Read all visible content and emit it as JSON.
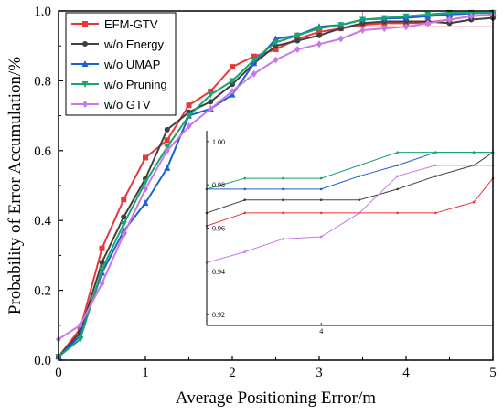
{
  "chart_data": [
    {
      "type": "line",
      "xlabel": "Average Positioning Error/m",
      "ylabel": "Probability of Error Accumulation/%",
      "xlim": [
        0,
        5
      ],
      "ylim": [
        0,
        1.0
      ],
      "xticks": [
        "0",
        "1",
        "2",
        "3",
        "4",
        "5"
      ],
      "yticks": [
        "0.0",
        "0.2",
        "0.4",
        "0.6",
        "0.8",
        "1.0"
      ],
      "grid": false,
      "legend_position": "top-left",
      "highlight_box": {
        "x": [
          3.5,
          5.0
        ],
        "y": [
          0.955,
          1.0
        ],
        "color": "#f08080"
      },
      "series": [
        {
          "name": "EFM-GTV",
          "color": "#e8383b",
          "marker": "square",
          "x": [
            0,
            0.25,
            0.5,
            0.75,
            1.0,
            1.25,
            1.5,
            1.75,
            2.0,
            2.25,
            2.5,
            2.75,
            3.0,
            3.25,
            3.5,
            3.75,
            4.0,
            4.25,
            4.5,
            4.75,
            5.0
          ],
          "y": [
            0.01,
            0.09,
            0.32,
            0.46,
            0.58,
            0.63,
            0.73,
            0.77,
            0.84,
            0.87,
            0.89,
            0.92,
            0.94,
            0.95,
            0.96,
            0.965,
            0.965,
            0.967,
            0.975,
            0.985,
            0.99
          ]
        },
        {
          "name": "w/o Energy",
          "color": "#404040",
          "marker": "circle",
          "x": [
            0,
            0.25,
            0.5,
            0.75,
            1.0,
            1.25,
            1.5,
            1.75,
            2.0,
            2.25,
            2.5,
            2.75,
            3.0,
            3.25,
            3.5,
            3.75,
            4.0,
            4.25,
            4.5,
            4.75,
            5.0
          ],
          "y": [
            0.01,
            0.08,
            0.28,
            0.41,
            0.52,
            0.66,
            0.71,
            0.74,
            0.79,
            0.85,
            0.9,
            0.915,
            0.93,
            0.95,
            0.965,
            0.97,
            0.97,
            0.97,
            0.965,
            0.975,
            0.98
          ]
        },
        {
          "name": "w/o UMAP",
          "color": "#1f5fd0",
          "marker": "triangle-up",
          "x": [
            0,
            0.25,
            0.5,
            0.75,
            1.0,
            1.25,
            1.5,
            1.75,
            2.0,
            2.25,
            2.5,
            2.75,
            3.0,
            3.25,
            3.5,
            3.75,
            4.0,
            4.25,
            4.5,
            4.75,
            5.0
          ],
          "y": [
            0.01,
            0.07,
            0.25,
            0.37,
            0.45,
            0.55,
            0.7,
            0.72,
            0.76,
            0.85,
            0.92,
            0.93,
            0.955,
            0.96,
            0.975,
            0.978,
            0.98,
            0.985,
            0.99,
            0.993,
            0.995
          ]
        },
        {
          "name": "w/o Pruning",
          "color": "#1aa56a",
          "marker": "triangle-down",
          "x": [
            0,
            0.25,
            0.5,
            0.75,
            1.0,
            1.25,
            1.5,
            1.75,
            2.0,
            2.25,
            2.5,
            2.75,
            3.0,
            3.25,
            3.5,
            3.75,
            4.0,
            4.25,
            4.5,
            4.75,
            5.0
          ],
          "y": [
            0.01,
            0.06,
            0.26,
            0.39,
            0.51,
            0.61,
            0.7,
            0.76,
            0.8,
            0.86,
            0.91,
            0.93,
            0.95,
            0.96,
            0.975,
            0.98,
            0.985,
            0.99,
            0.995,
            0.995,
            0.995
          ]
        },
        {
          "name": "w/o GTV",
          "color": "#c878e8",
          "marker": "diamond",
          "x": [
            0,
            0.25,
            0.5,
            0.75,
            1.0,
            1.25,
            1.5,
            1.75,
            2.0,
            2.25,
            2.5,
            2.75,
            3.0,
            3.25,
            3.5,
            3.75,
            4.0,
            4.25,
            4.5,
            4.75,
            5.0
          ],
          "y": [
            0.06,
            0.1,
            0.22,
            0.36,
            0.49,
            0.6,
            0.67,
            0.72,
            0.77,
            0.82,
            0.86,
            0.89,
            0.905,
            0.92,
            0.945,
            0.95,
            0.955,
            0.965,
            0.975,
            0.985,
            0.99
          ]
        }
      ]
    },
    {
      "type": "line",
      "role": "inset",
      "xlim": [
        3.7,
        4.45
      ],
      "ylim": [
        0.915,
        1.005
      ],
      "xticks": [
        "4"
      ],
      "yticks": [
        "0.92",
        "0.94",
        "0.96",
        "0.98",
        "1.00"
      ],
      "series": [
        {
          "name": "EFM-GTV",
          "color": "#e8383b",
          "x": [
            3.7,
            3.8,
            3.9,
            4.0,
            4.1,
            4.2,
            4.3,
            4.4,
            4.45
          ],
          "y": [
            0.961,
            0.967,
            0.967,
            0.967,
            0.967,
            0.967,
            0.967,
            0.972,
            0.983
          ]
        },
        {
          "name": "w/o Energy",
          "color": "#404040",
          "x": [
            3.7,
            3.8,
            3.9,
            4.0,
            4.1,
            4.2,
            4.3,
            4.4,
            4.45
          ],
          "y": [
            0.967,
            0.973,
            0.973,
            0.973,
            0.973,
            0.978,
            0.984,
            0.989,
            0.995
          ]
        },
        {
          "name": "w/o UMAP",
          "color": "#1f5fd0",
          "x": [
            3.7,
            3.8,
            3.9,
            4.0,
            4.1,
            4.2,
            4.3,
            4.4,
            4.45
          ],
          "y": [
            0.978,
            0.978,
            0.978,
            0.978,
            0.984,
            0.989,
            0.995,
            0.995,
            0.995
          ]
        },
        {
          "name": "w/o Pruning",
          "color": "#1aa56a",
          "x": [
            3.7,
            3.8,
            3.9,
            4.0,
            4.1,
            4.2,
            4.3,
            4.4,
            4.45
          ],
          "y": [
            0.978,
            0.983,
            0.983,
            0.983,
            0.989,
            0.995,
            0.995,
            0.995,
            0.995
          ]
        },
        {
          "name": "w/o GTV",
          "color": "#c878e8",
          "x": [
            3.7,
            3.8,
            3.9,
            4.0,
            4.1,
            4.2,
            4.3,
            4.4,
            4.45
          ],
          "y": [
            0.944,
            0.949,
            0.955,
            0.956,
            0.967,
            0.984,
            0.989,
            0.989,
            0.989
          ]
        }
      ]
    }
  ]
}
